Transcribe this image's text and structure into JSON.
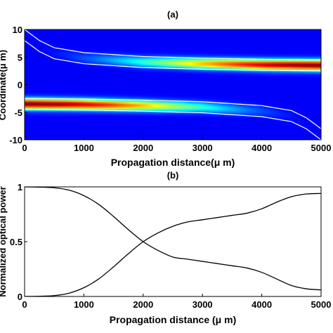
{
  "chart_data": [
    {
      "panel": "(a)",
      "type": "heatmap",
      "title": "(a)",
      "xlabel": "Propagation distance(μ m)",
      "ylabel": "Coordinate(μ m)",
      "xlim": [
        0,
        5000
      ],
      "ylim": [
        -10,
        10
      ],
      "xticks": [
        "0",
        "1000",
        "2000",
        "3000",
        "4000",
        "5000"
      ],
      "yticks": [
        "10",
        "5",
        "0",
        "-5",
        "-10"
      ],
      "colormap": "jet",
      "background_color": "#0a2ad6",
      "waveguide_outline_color": "#ffffff",
      "upper_waveguide": {
        "center": [
          {
            "x": 0,
            "y": 9.0
          },
          {
            "x": 250,
            "y": 7.0
          },
          {
            "x": 500,
            "y": 5.7
          },
          {
            "x": 1000,
            "y": 4.8
          },
          {
            "x": 2000,
            "y": 4.1
          },
          {
            "x": 3000,
            "y": 3.8
          },
          {
            "x": 4000,
            "y": 3.6
          },
          {
            "x": 5000,
            "y": 3.5
          }
        ],
        "half_width": 1.0
      },
      "lower_waveguide": {
        "center": [
          {
            "x": 0,
            "y": -3.5
          },
          {
            "x": 1000,
            "y": -3.6
          },
          {
            "x": 2000,
            "y": -3.8
          },
          {
            "x": 3000,
            "y": -4.1
          },
          {
            "x": 4000,
            "y": -4.8
          },
          {
            "x": 4500,
            "y": -5.7
          },
          {
            "x": 4750,
            "y": -7.0
          },
          {
            "x": 5000,
            "y": -9.0
          }
        ],
        "half_width": 1.0
      }
    },
    {
      "panel": "(b)",
      "type": "line",
      "title": "(b)",
      "xlabel": "Propagation distance (μ m)",
      "ylabel": "Normalized optical power",
      "xlim": [
        0,
        5000
      ],
      "ylim": [
        0,
        1
      ],
      "xticks": [
        "0",
        "1000",
        "2000",
        "3000",
        "4000",
        "5000"
      ],
      "yticks": [
        "1",
        "0.5",
        "0"
      ],
      "x": [
        0,
        250,
        500,
        750,
        1000,
        1250,
        1500,
        1750,
        2000,
        2250,
        2500,
        2750,
        3000,
        3250,
        3500,
        3750,
        4000,
        4250,
        4500,
        4750,
        5000
      ],
      "series": [
        {
          "color": "#000000",
          "values": [
            1.0,
            0.998,
            0.992,
            0.97,
            0.92,
            0.84,
            0.73,
            0.61,
            0.5,
            0.42,
            0.36,
            0.34,
            0.32,
            0.3,
            0.28,
            0.26,
            0.22,
            0.16,
            0.1,
            0.07,
            0.06
          ]
        },
        {
          "color": "#000000",
          "values": [
            0.0,
            0.002,
            0.008,
            0.03,
            0.08,
            0.16,
            0.27,
            0.39,
            0.5,
            0.58,
            0.64,
            0.68,
            0.7,
            0.72,
            0.74,
            0.76,
            0.8,
            0.86,
            0.91,
            0.935,
            0.94
          ]
        }
      ]
    }
  ]
}
